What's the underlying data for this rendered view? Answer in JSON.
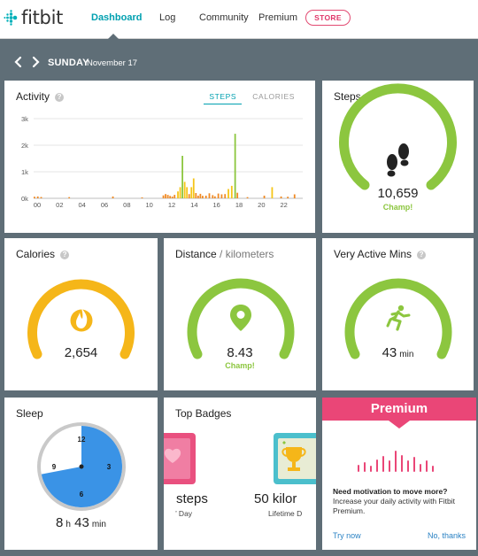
{
  "header": {
    "brand": "fitbit",
    "nav": [
      {
        "label": "Dashboard",
        "active": true
      },
      {
        "label": "Log"
      },
      {
        "label": "Community"
      },
      {
        "label": "Premium"
      }
    ],
    "store_label": "STORE"
  },
  "datebar": {
    "day": "SUNDAY",
    "month_day": "November 17"
  },
  "activity": {
    "title": "Activity",
    "tabs": [
      "STEPS",
      "CALORIES"
    ],
    "active_tab": "STEPS",
    "chart_data": {
      "type": "bar",
      "x_unit": "hour",
      "xlabels": [
        "00",
        "02",
        "04",
        "06",
        "08",
        "10",
        "12",
        "14",
        "16",
        "18",
        "20",
        "22"
      ],
      "ylabels": [
        "3k",
        "2k",
        "1k",
        "0k"
      ],
      "ylim": [
        0,
        3000
      ],
      "grid": true,
      "colors": {
        "low": "#f08a24",
        "mid": "#f5c518",
        "high": "#8cc63f"
      },
      "values": [
        [
          0.0,
          60
        ],
        [
          0.3,
          70
        ],
        [
          0.6,
          50
        ],
        [
          3.1,
          45
        ],
        [
          7.0,
          70
        ],
        [
          9.6,
          35
        ],
        [
          11.5,
          110
        ],
        [
          11.7,
          160
        ],
        [
          11.9,
          130
        ],
        [
          12.1,
          90
        ],
        [
          12.3,
          65
        ],
        [
          12.5,
          130
        ],
        [
          12.8,
          260
        ],
        [
          13.0,
          420
        ],
        [
          13.2,
          1600
        ],
        [
          13.4,
          620
        ],
        [
          13.6,
          420
        ],
        [
          13.8,
          160
        ],
        [
          14.0,
          420
        ],
        [
          14.2,
          750
        ],
        [
          14.4,
          200
        ],
        [
          14.6,
          100
        ],
        [
          14.8,
          170
        ],
        [
          15.0,
          95
        ],
        [
          15.3,
          100
        ],
        [
          15.6,
          190
        ],
        [
          15.9,
          120
        ],
        [
          16.1,
          75
        ],
        [
          16.4,
          180
        ],
        [
          16.7,
          150
        ],
        [
          17.0,
          160
        ],
        [
          17.3,
          350
        ],
        [
          17.6,
          470
        ],
        [
          17.9,
          2430
        ],
        [
          18.1,
          210
        ],
        [
          19.0,
          45
        ],
        [
          20.5,
          100
        ],
        [
          21.2,
          420
        ],
        [
          22.0,
          70
        ],
        [
          22.6,
          60
        ],
        [
          23.2,
          150
        ]
      ]
    }
  },
  "steps": {
    "title": "Steps",
    "value": "10,659",
    "status": "Champ!",
    "progress": 1.0,
    "color": "#8cc63f"
  },
  "calories": {
    "title": "Calories",
    "value": "2,654",
    "progress": 1.0,
    "color": "#f5b619"
  },
  "distance": {
    "title": "Distance",
    "unit_label": " / kilometers",
    "value": "8.43",
    "status": "Champ!",
    "progress": 1.0,
    "color": "#8cc63f"
  },
  "active_mins": {
    "title": "Very Active Mins",
    "value": "43",
    "unit": "min",
    "progress": 1.0,
    "color": "#8cc63f"
  },
  "sleep": {
    "title": "Sleep",
    "hours": "8",
    "h_label": "h",
    "minutes": "43",
    "min_label": "min",
    "clock_numbers": [
      "12",
      "3",
      "6",
      "9"
    ],
    "asleep_fraction": 0.72
  },
  "badges": {
    "title": "Top Badges",
    "items": [
      {
        "value": "steps",
        "subtitle": "’ Day"
      },
      {
        "value": "50 kilor",
        "subtitle": "Lifetime D"
      }
    ]
  },
  "premium": {
    "title": "Premium",
    "question": "Need motivation to move more?",
    "description": "Increase your daily activity with Fitbit Premium.",
    "try_label": "Try now",
    "no_label": "No, thanks",
    "accent": "#ea4677"
  }
}
